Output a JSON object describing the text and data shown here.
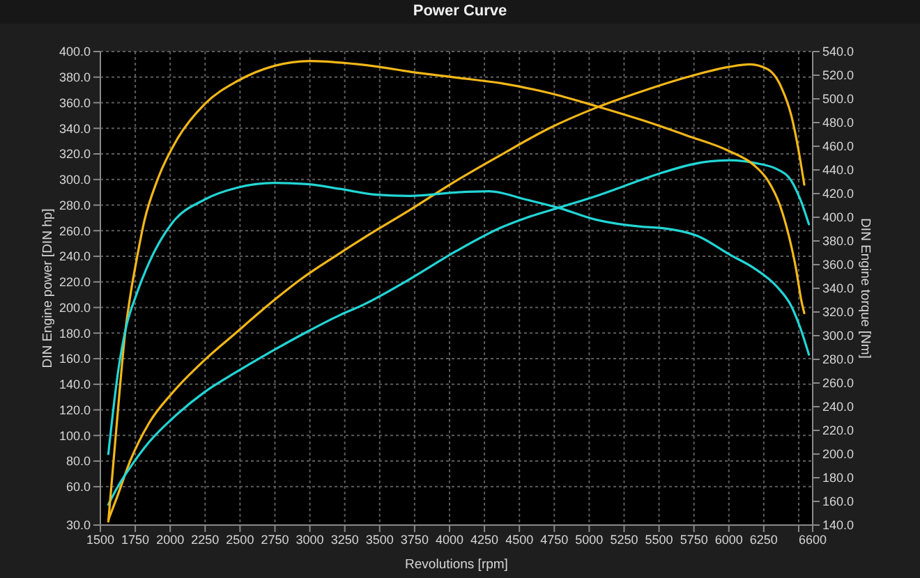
{
  "chart_data": {
    "type": "line",
    "title": "Power Curve",
    "xlabel": "Revolutions [rpm]",
    "ylabel": "DIN Engine power [DIN hp]",
    "y2label": "DIN Engine torque [Nm]",
    "xlim": [
      1500,
      6600
    ],
    "xticks": [
      1500,
      1750,
      2000,
      2250,
      2500,
      2750,
      3000,
      3250,
      3500,
      3750,
      4000,
      4250,
      4500,
      4750,
      5000,
      5250,
      5500,
      5750,
      6000,
      6250,
      {
        "value": 6500,
        "label": null
      },
      6600
    ],
    "ylim": [
      30,
      400
    ],
    "yticks": [
      {
        "value": 30,
        "label": "30.0"
      },
      {
        "value": 60,
        "label": "60.0"
      },
      {
        "value": 80,
        "label": "80.0"
      },
      {
        "value": 100,
        "label": "100.0"
      },
      {
        "value": 120,
        "label": "120.0"
      },
      {
        "value": 140,
        "label": "140.0"
      },
      {
        "value": 160,
        "label": "160.0"
      },
      {
        "value": 180,
        "label": "180.0"
      },
      {
        "value": 200,
        "label": "200.0"
      },
      {
        "value": 220,
        "label": "220.0"
      },
      {
        "value": 240,
        "label": "240.0"
      },
      {
        "value": 260,
        "label": "260.0"
      },
      {
        "value": 280,
        "label": "280.0"
      },
      {
        "value": 300,
        "label": "300.0"
      },
      {
        "value": 320,
        "label": "320.0"
      },
      {
        "value": 340,
        "label": "340.0"
      },
      {
        "value": 360,
        "label": "360.0"
      },
      {
        "value": 380,
        "label": "380.0"
      },
      {
        "value": 400,
        "label": "400.0"
      }
    ],
    "y2lim": [
      140,
      540
    ],
    "y2ticks": [
      {
        "value": 140,
        "label": "140.0"
      },
      {
        "value": 160,
        "label": "160.0"
      },
      {
        "value": 180,
        "label": "180.0"
      },
      {
        "value": 200,
        "label": "200.0"
      },
      {
        "value": 220,
        "label": "220.0"
      },
      {
        "value": 240,
        "label": "240.0"
      },
      {
        "value": 260,
        "label": "260.0"
      },
      {
        "value": 280,
        "label": "280.0"
      },
      {
        "value": 300,
        "label": "300.0"
      },
      {
        "value": 320,
        "label": "320.0"
      },
      {
        "value": 340,
        "label": "340.0"
      },
      {
        "value": 360,
        "label": "360.0"
      },
      {
        "value": 380,
        "label": "380.0"
      },
      {
        "value": 400,
        "label": "400.0"
      },
      {
        "value": 420,
        "label": "420.0"
      },
      {
        "value": 440,
        "label": "440.0"
      },
      {
        "value": 460,
        "label": "460.0"
      },
      {
        "value": 480,
        "label": "480.0"
      },
      {
        "value": 500,
        "label": "500.0"
      },
      {
        "value": 520,
        "label": "520.0"
      },
      {
        "value": 540,
        "label": "540.0"
      }
    ],
    "grid": true,
    "series": [
      {
        "color": "#f4b718",
        "x": [
          1557,
          1620,
          1713,
          1850,
          2013,
          2247,
          2447,
          2747,
          2947,
          3180,
          3380,
          3713,
          4047,
          4380,
          4713,
          5047,
          5380,
          5700,
          6000,
          6150,
          6280,
          6380,
          6447,
          6497,
          6540
        ],
        "values": [
          34,
          52,
          80,
          110,
          133,
          159,
          178,
          206,
          223,
          240,
          254,
          276,
          299,
          320,
          340,
          356,
          369,
          380,
          388,
          390,
          386,
          371,
          350,
          324,
          296
        ]
      },
      {
        "color": "#22d6d6",
        "x": [
          1557,
          1630,
          1713,
          1850,
          2013,
          2247,
          2480,
          2747,
          2980,
          3213,
          3380,
          3713,
          4047,
          4380,
          4547,
          4813,
          5047,
          5380,
          5513,
          5847,
          6013,
          6180,
          6347,
          6447,
          6513,
          6573
        ],
        "values": [
          46,
          61,
          75,
          95,
          113,
          134,
          150,
          167,
          181,
          194,
          202,
          222,
          244,
          263,
          270,
          279,
          287,
          300,
          305,
          314,
          315,
          313,
          308,
          299,
          284,
          265
        ]
      },
      {
        "color": "#f4b718",
        "axis": "y2",
        "x": [
          1557,
          1620,
          1680,
          1720,
          1750,
          1815,
          1910,
          2050,
          2250,
          2480,
          2750,
          3000,
          3280,
          3500,
          3713,
          4047,
          4380,
          4713,
          5047,
          5380,
          5700,
          6000,
          6180,
          6280,
          6363,
          6430,
          6480,
          6520,
          6540
        ],
        "values": [
          143,
          229,
          305,
          338,
          358,
          397,
          432,
          466,
          496,
          515,
          528,
          532,
          530,
          527,
          523,
          518,
          513,
          505,
          494,
          482,
          469,
          456,
          444,
          431,
          411,
          384,
          357,
          329,
          319
        ]
      },
      {
        "color": "#22d6d6",
        "axis": "y2",
        "x": [
          1557,
          1630,
          1690,
          1750,
          1850,
          2013,
          2247,
          2480,
          2747,
          2980,
          3213,
          3480,
          3713,
          4047,
          4280,
          4547,
          4780,
          5047,
          5380,
          5513,
          5780,
          6013,
          6180,
          6347,
          6447,
          6513,
          6573
        ],
        "values": [
          200,
          272,
          310,
          332,
          362,
          395,
          415,
          425,
          429,
          428,
          424,
          419,
          418,
          421,
          422,
          415,
          408,
          398,
          392,
          391,
          384,
          368,
          357,
          341,
          325,
          306,
          284
        ]
      }
    ]
  }
}
